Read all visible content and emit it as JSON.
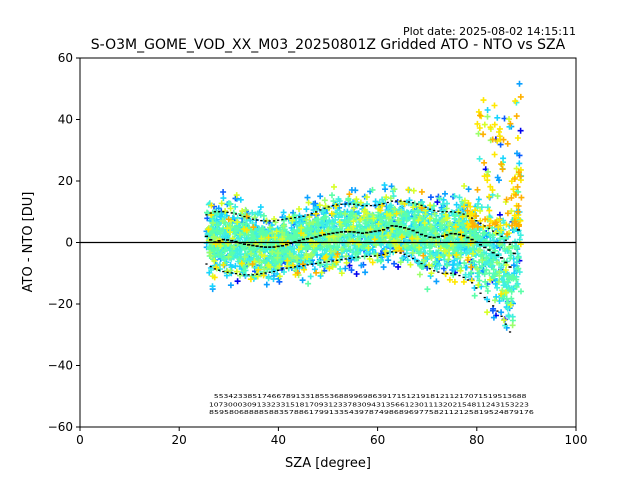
{
  "chart_data": {
    "type": "scatter",
    "plot_date": "Plot date: 2025-08-02 14:15:11",
    "title": "S-O3M_GOME_VOD_XX_M03_20250801Z Gridded ATO - NTO vs SZA",
    "xlabel": "SZA [degree]",
    "ylabel": "ATO - NTO [DU]",
    "xlim": [
      0,
      100
    ],
    "ylim": [
      -60,
      60
    ],
    "x_ticks": [
      0,
      20,
      40,
      60,
      80,
      100
    ],
    "y_ticks": [
      -60,
      -40,
      -20,
      0,
      20,
      40,
      60
    ],
    "x_tick_labels": [
      "0",
      "20",
      "40",
      "60",
      "80",
      "100"
    ],
    "y_tick_labels": [
      "−60",
      "−40",
      "−20",
      "0",
      "20",
      "40",
      "60"
    ],
    "grid": false,
    "zero_line": 0,
    "marker": "+",
    "colors": [
      "#0000ee",
      "#0a5cff",
      "#0aa0ff",
      "#18d4ff",
      "#40f0e0",
      "#5cffa8",
      "#9cff6a",
      "#d8ff2a",
      "#ffe800",
      "#ffb000"
    ],
    "mean_series": {
      "x": [
        25.5,
        27,
        29,
        31,
        33,
        35,
        37,
        39,
        41,
        43,
        45,
        47,
        49,
        51,
        53,
        55,
        57,
        59,
        61,
        63,
        65,
        67,
        69,
        71,
        73,
        75,
        77,
        79,
        81,
        83,
        85,
        87,
        88.5
      ],
      "y": [
        2,
        0,
        1,
        0.5,
        -0.5,
        -1,
        -1.5,
        -1.5,
        -1,
        0,
        1,
        1.5,
        2.5,
        3,
        3.5,
        3.5,
        3,
        3.5,
        4,
        5.5,
        5,
        4,
        2.5,
        1.5,
        2,
        3,
        2.5,
        1,
        -1,
        -3,
        -5,
        -8.5,
        5
      ]
    },
    "upper_series": {
      "x": [
        25.5,
        27,
        29,
        31,
        33,
        35,
        37,
        39,
        41,
        43,
        45,
        47,
        49,
        51,
        53,
        55,
        57,
        59,
        61,
        63,
        65,
        67,
        69,
        71,
        73,
        75,
        77,
        79,
        81,
        83,
        85,
        87
      ],
      "y": [
        9,
        10,
        10,
        9.5,
        8.5,
        7.5,
        7,
        7,
        7.5,
        8,
        8.5,
        9.5,
        11,
        12,
        12.5,
        12.5,
        12,
        12,
        12.5,
        13.5,
        13.5,
        13,
        12,
        10.5,
        10,
        10,
        9.5,
        8,
        6,
        4,
        2,
        -1
      ]
    },
    "lower_series": {
      "x": [
        25.5,
        27,
        29,
        31,
        33,
        35,
        37,
        39,
        41,
        43,
        45,
        47,
        49,
        51,
        53,
        55,
        57,
        59,
        61,
        63,
        65,
        67,
        69,
        71,
        73,
        75,
        77,
        79,
        81,
        83,
        85,
        87
      ],
      "y": [
        -7,
        -8.5,
        -9.5,
        -10,
        -10.5,
        -10.5,
        -10,
        -9.5,
        -8.5,
        -8,
        -7.5,
        -7,
        -6.5,
        -6,
        -5.5,
        -5,
        -4.5,
        -4.5,
        -4,
        -3,
        -3.5,
        -5,
        -7,
        -9,
        -10,
        -10,
        -11,
        -13,
        -17,
        -20,
        -24,
        -30
      ]
    },
    "counts_rows": [
      {
        "y": -50.5,
        "x_start": 27,
        "x_end": 90,
        "text": "55342338517466789133185536889969863917151219181211217071519513688"
      },
      {
        "y": -53.3,
        "x_start": 26,
        "x_end": 90.5,
        "text": "1073000309133233151817093123378309431356612301113202154811243153223"
      },
      {
        "y": -55.8,
        "x_start": 26,
        "x_end": 91.5,
        "text": "85958068888588357886179913354397874986896977582112125819524879176"
      }
    ]
  }
}
